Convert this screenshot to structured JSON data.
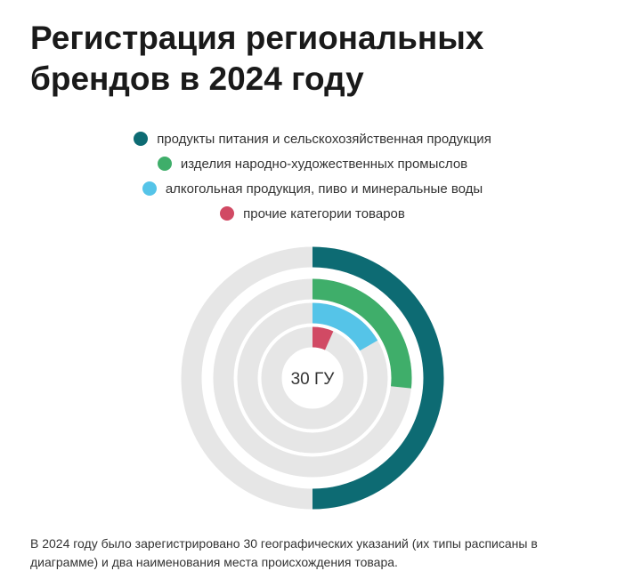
{
  "title": "Регистрация региональных брендов в 2024 году",
  "footnote": "В 2024 году было зарегистрировано 30 географических указаний (их типы расписаны в диаграмме) и два наименования места происхождения товара.",
  "chart_data": {
    "type": "radial_bar",
    "center_label": "30 ГУ",
    "total": 30,
    "track_color": "#e6e6e6",
    "series": [
      {
        "name": "продукты питания и сельскохозяйственная продукция",
        "value": 15,
        "color": "#0d6b73"
      },
      {
        "name": "изделия народно-художественных промыслов",
        "value": 8,
        "color": "#3fae6a"
      },
      {
        "name": "алкогольная продукция, пиво и минеральные воды",
        "value": 5,
        "color": "#55c4e8"
      },
      {
        "name": "прочие категории товаров",
        "value": 2,
        "color": "#d14a64"
      }
    ]
  }
}
